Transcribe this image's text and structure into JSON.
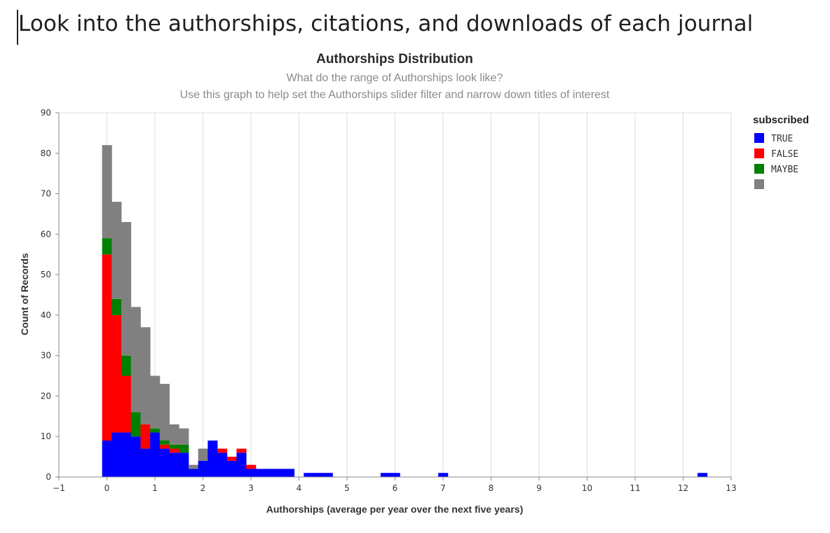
{
  "page": {
    "heading": "Look into the authorships, citations, and downloads of each journal"
  },
  "chart_data": {
    "type": "bar",
    "stacked": true,
    "title": "Authorships Distribution",
    "subtitle": [
      "What do the range of Authorships look like?",
      "Use this graph to help set the Authorships slider filter and narrow down titles of interest"
    ],
    "xlabel": "Authorships (average per year over the next five years)",
    "ylabel": "Count of Records",
    "xlim": [
      -1,
      13
    ],
    "ylim": [
      0,
      90
    ],
    "x_ticks": [
      -1,
      0,
      1,
      2,
      3,
      4,
      5,
      6,
      7,
      8,
      9,
      10,
      11,
      12,
      13
    ],
    "y_ticks": [
      0,
      10,
      20,
      30,
      40,
      50,
      60,
      70,
      80,
      90
    ],
    "grid_x": true,
    "bin_width": 0.2,
    "bins": [
      -0.1,
      0.1,
      0.3,
      0.5,
      0.7,
      0.9,
      1.1,
      1.3,
      1.5,
      1.7,
      1.9,
      2.1,
      2.3,
      2.5,
      2.7,
      2.9,
      3.1,
      3.3,
      3.5,
      3.7,
      3.9,
      4.1,
      4.3,
      4.5,
      4.7,
      4.9,
      5.1,
      5.3,
      5.5,
      5.7,
      5.9,
      6.1,
      6.3,
      6.5,
      6.7,
      6.9,
      7.1,
      7.3,
      7.5,
      7.7,
      7.9,
      8.1,
      8.3,
      8.5,
      8.7,
      8.9,
      9.1,
      9.3,
      9.5,
      9.7,
      9.9,
      10.1,
      10.3,
      10.5,
      10.7,
      10.9,
      11.1,
      11.3,
      11.5,
      11.7,
      11.9,
      12.1,
      12.3
    ],
    "series": [
      {
        "name": "TRUE",
        "color": "#0000ff",
        "values": [
          9,
          11,
          11,
          10,
          7,
          11,
          7,
          6,
          6,
          2,
          4,
          9,
          6,
          4,
          6,
          2,
          2,
          2,
          2,
          2,
          0,
          1,
          1,
          1,
          0,
          0,
          0,
          0,
          0,
          1,
          1,
          0,
          0,
          0,
          0,
          1,
          0,
          0,
          0,
          0,
          0,
          0,
          0,
          0,
          0,
          0,
          0,
          0,
          0,
          0,
          0,
          0,
          0,
          0,
          0,
          0,
          0,
          0,
          0,
          0,
          0,
          0,
          1
        ]
      },
      {
        "name": "FALSE",
        "color": "#ff0000",
        "values": [
          46,
          29,
          14,
          0,
          6,
          0,
          1,
          1,
          0,
          0,
          0,
          0,
          1,
          1,
          1,
          1,
          0,
          0,
          0,
          0,
          0,
          0,
          0,
          0,
          0,
          0,
          0,
          0,
          0,
          0,
          0,
          0,
          0,
          0,
          0,
          0,
          0,
          0,
          0,
          0,
          0,
          0,
          0,
          0,
          0,
          0,
          0,
          0,
          0,
          0,
          0,
          0,
          0,
          0,
          0,
          0,
          0,
          0,
          0,
          0,
          0,
          0,
          0
        ]
      },
      {
        "name": "MAYBE",
        "color": "#008000",
        "values": [
          4,
          4,
          5,
          6,
          0,
          1,
          1,
          1,
          2,
          0,
          0,
          0,
          0,
          0,
          0,
          0,
          0,
          0,
          0,
          0,
          0,
          0,
          0,
          0,
          0,
          0,
          0,
          0,
          0,
          0,
          0,
          0,
          0,
          0,
          0,
          0,
          0,
          0,
          0,
          0,
          0,
          0,
          0,
          0,
          0,
          0,
          0,
          0,
          0,
          0,
          0,
          0,
          0,
          0,
          0,
          0,
          0,
          0,
          0,
          0,
          0,
          0,
          0
        ]
      },
      {
        "name": "",
        "color": "#808080",
        "values": [
          23,
          24,
          33,
          26,
          24,
          13,
          14,
          5,
          4,
          1,
          3,
          0,
          0,
          0,
          0,
          0,
          0,
          0,
          0,
          0,
          0,
          0,
          0,
          0,
          0,
          0,
          0,
          0,
          0,
          0,
          0,
          0,
          0,
          0,
          0,
          0,
          0,
          0,
          0,
          0,
          0,
          0,
          0,
          0,
          0,
          0,
          0,
          0,
          0,
          0,
          0,
          0,
          0,
          0,
          0,
          0,
          0,
          0,
          0,
          0,
          0,
          0,
          0
        ]
      }
    ],
    "legend": {
      "title": "subscribed",
      "position": "right"
    }
  }
}
